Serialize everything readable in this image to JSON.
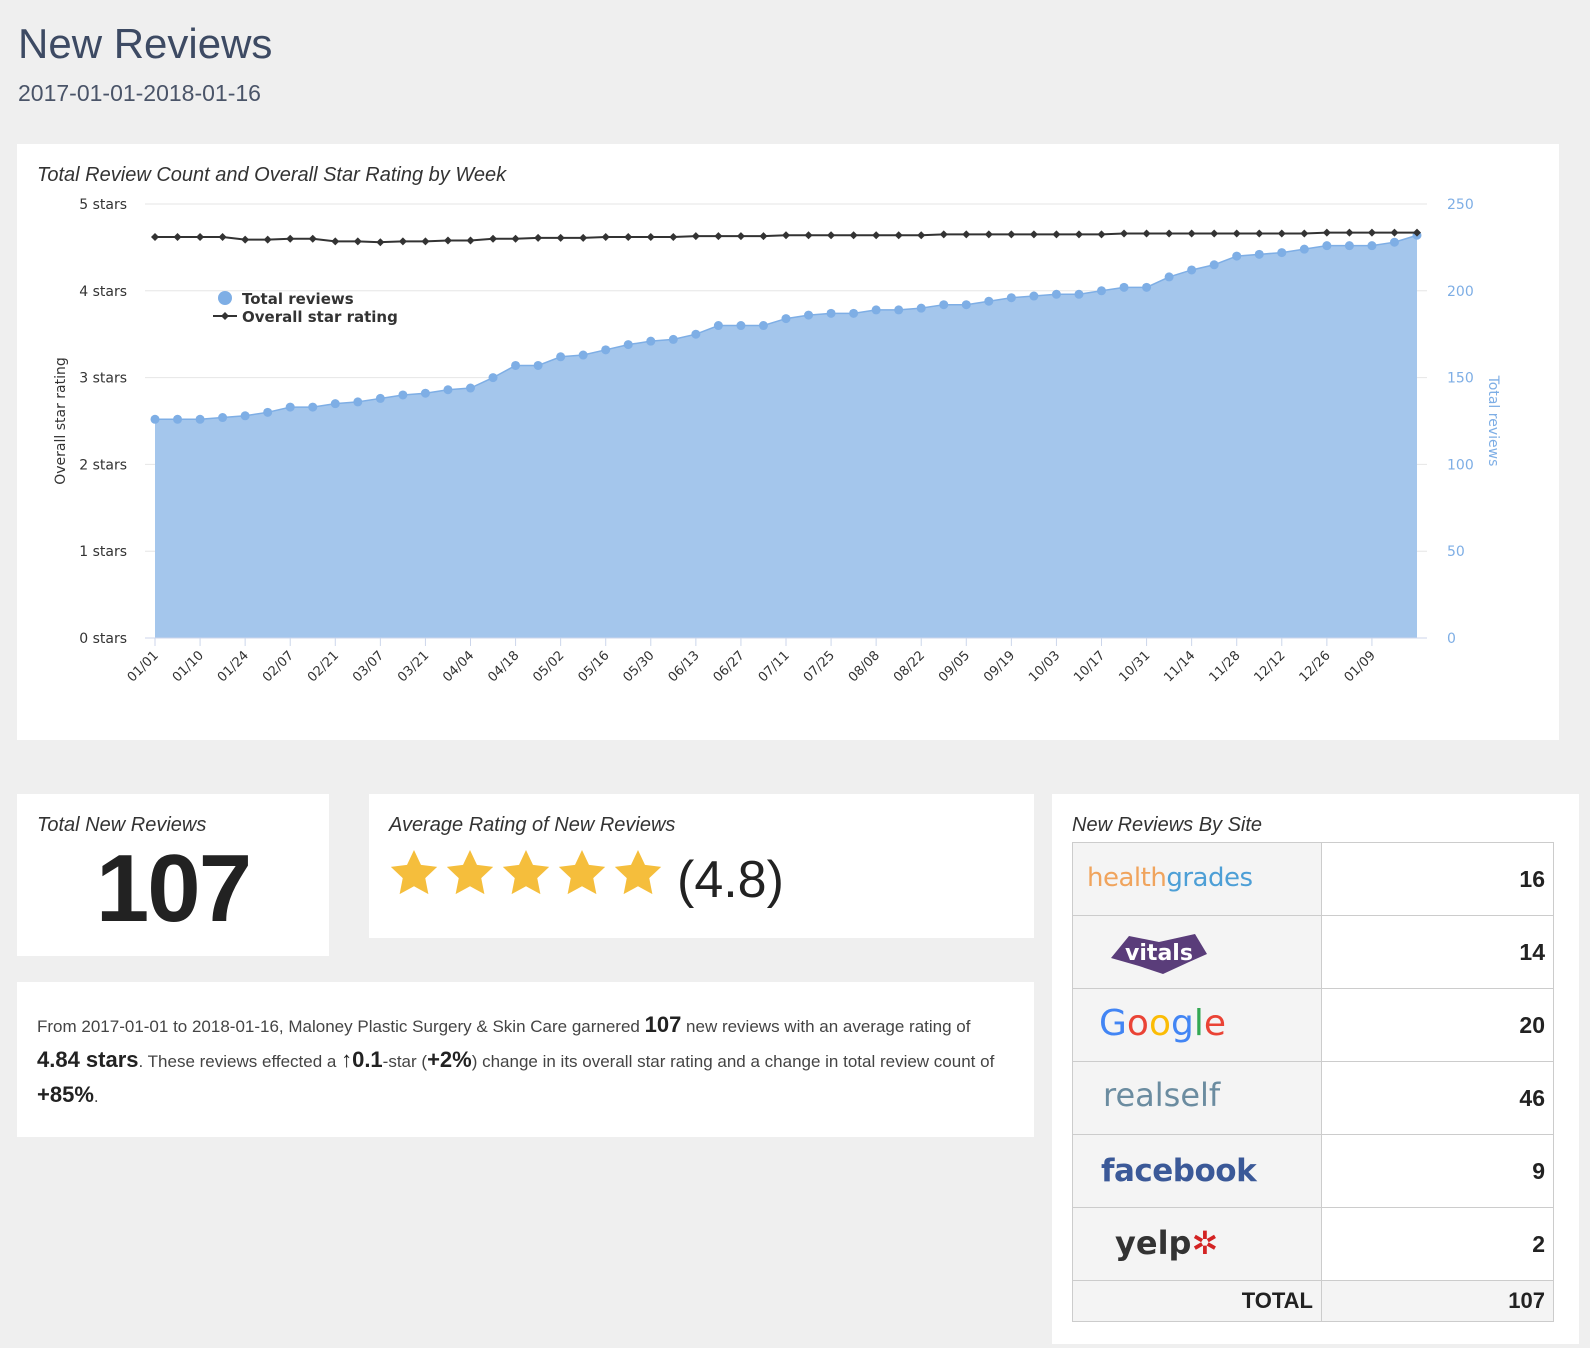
{
  "header": {
    "title": "New Reviews",
    "date_range": "2017-01-01-2018-01-16"
  },
  "chart_data": {
    "type": "area",
    "title": "Total Review Count and Overall Star Rating by Week",
    "y_left_label": "Overall star rating",
    "y_right_label": "Total reviews",
    "y_left_ticks": [
      "5 stars",
      "4 stars",
      "3 stars",
      "2 stars",
      "1 stars",
      "0 stars"
    ],
    "y_left_range": [
      0,
      5
    ],
    "y_right_ticks": [
      "250",
      "200",
      "150",
      "100",
      "50",
      "0"
    ],
    "y_right_range": [
      0,
      250
    ],
    "x_tick_labels": [
      "01/01",
      "01/10",
      "01/24",
      "02/07",
      "02/21",
      "03/07",
      "03/21",
      "04/04",
      "04/18",
      "05/02",
      "05/16",
      "05/30",
      "06/13",
      "06/27",
      "07/11",
      "07/25",
      "08/08",
      "08/22",
      "09/05",
      "09/19",
      "10/03",
      "10/17",
      "10/31",
      "11/14",
      "11/28",
      "12/12",
      "12/26",
      "01/09"
    ],
    "legend": [
      "Total reviews",
      "Overall star rating"
    ],
    "legend_placement": "top-left",
    "colors": {
      "total_reviews": "#a4c6ec",
      "total_reviews_point": "#7eaee5",
      "star_rating": "#333333"
    },
    "series": [
      {
        "name": "Total reviews",
        "values": [
          126,
          126,
          126,
          127,
          128,
          130,
          133,
          133,
          135,
          136,
          138,
          140,
          141,
          143,
          144,
          150,
          157,
          157,
          162,
          163,
          166,
          169,
          171,
          172,
          175,
          180,
          180,
          180,
          184,
          186,
          187,
          187,
          189,
          189,
          190,
          192,
          192,
          194,
          196,
          197,
          198,
          198,
          200,
          202,
          202,
          208,
          212,
          215,
          220,
          221,
          222,
          224,
          226,
          226,
          226,
          228,
          232
        ]
      },
      {
        "name": "Overall star rating",
        "values": [
          4.62,
          4.62,
          4.62,
          4.62,
          4.59,
          4.59,
          4.6,
          4.6,
          4.57,
          4.57,
          4.56,
          4.57,
          4.57,
          4.58,
          4.58,
          4.6,
          4.6,
          4.61,
          4.61,
          4.61,
          4.62,
          4.62,
          4.62,
          4.62,
          4.63,
          4.63,
          4.63,
          4.63,
          4.64,
          4.64,
          4.64,
          4.64,
          4.64,
          4.64,
          4.64,
          4.65,
          4.65,
          4.65,
          4.65,
          4.65,
          4.65,
          4.65,
          4.65,
          4.66,
          4.66,
          4.66,
          4.66,
          4.66,
          4.66,
          4.66,
          4.66,
          4.66,
          4.67,
          4.67,
          4.67,
          4.67,
          4.67
        ]
      }
    ]
  },
  "total_new_reviews": {
    "title": "Total New Reviews",
    "value": "107"
  },
  "average_rating": {
    "title": "Average Rating of New Reviews",
    "stars": 4.8,
    "star_color": "#f5be3c",
    "value_text": "(4.8)"
  },
  "summary": {
    "p1": "From 2017-01-01 to 2018-01-16, Maloney Plastic Surgery & Skin Care garnered ",
    "reviews": "107",
    "p2": " new reviews with an average rating of ",
    "avg_stars": "4.84 stars",
    "p3": ". These reviews effected a ",
    "star_change": "↑0.1",
    "p4": "-star (",
    "pct_change": "+2%",
    "p5": ") change in its overall star rating and a change in total review count of ",
    "count_change": "+85%",
    "p6": "."
  },
  "sites": {
    "title": "New Reviews By Site",
    "rows": [
      {
        "site": "healthgrades",
        "count": "16"
      },
      {
        "site": "vitals",
        "count": "14"
      },
      {
        "site": "Google",
        "count": "20"
      },
      {
        "site": "realself",
        "count": "46"
      },
      {
        "site": "facebook",
        "count": "9"
      },
      {
        "site": "yelp",
        "count": "2"
      }
    ],
    "total_label": "TOTAL",
    "total_value": "107"
  }
}
